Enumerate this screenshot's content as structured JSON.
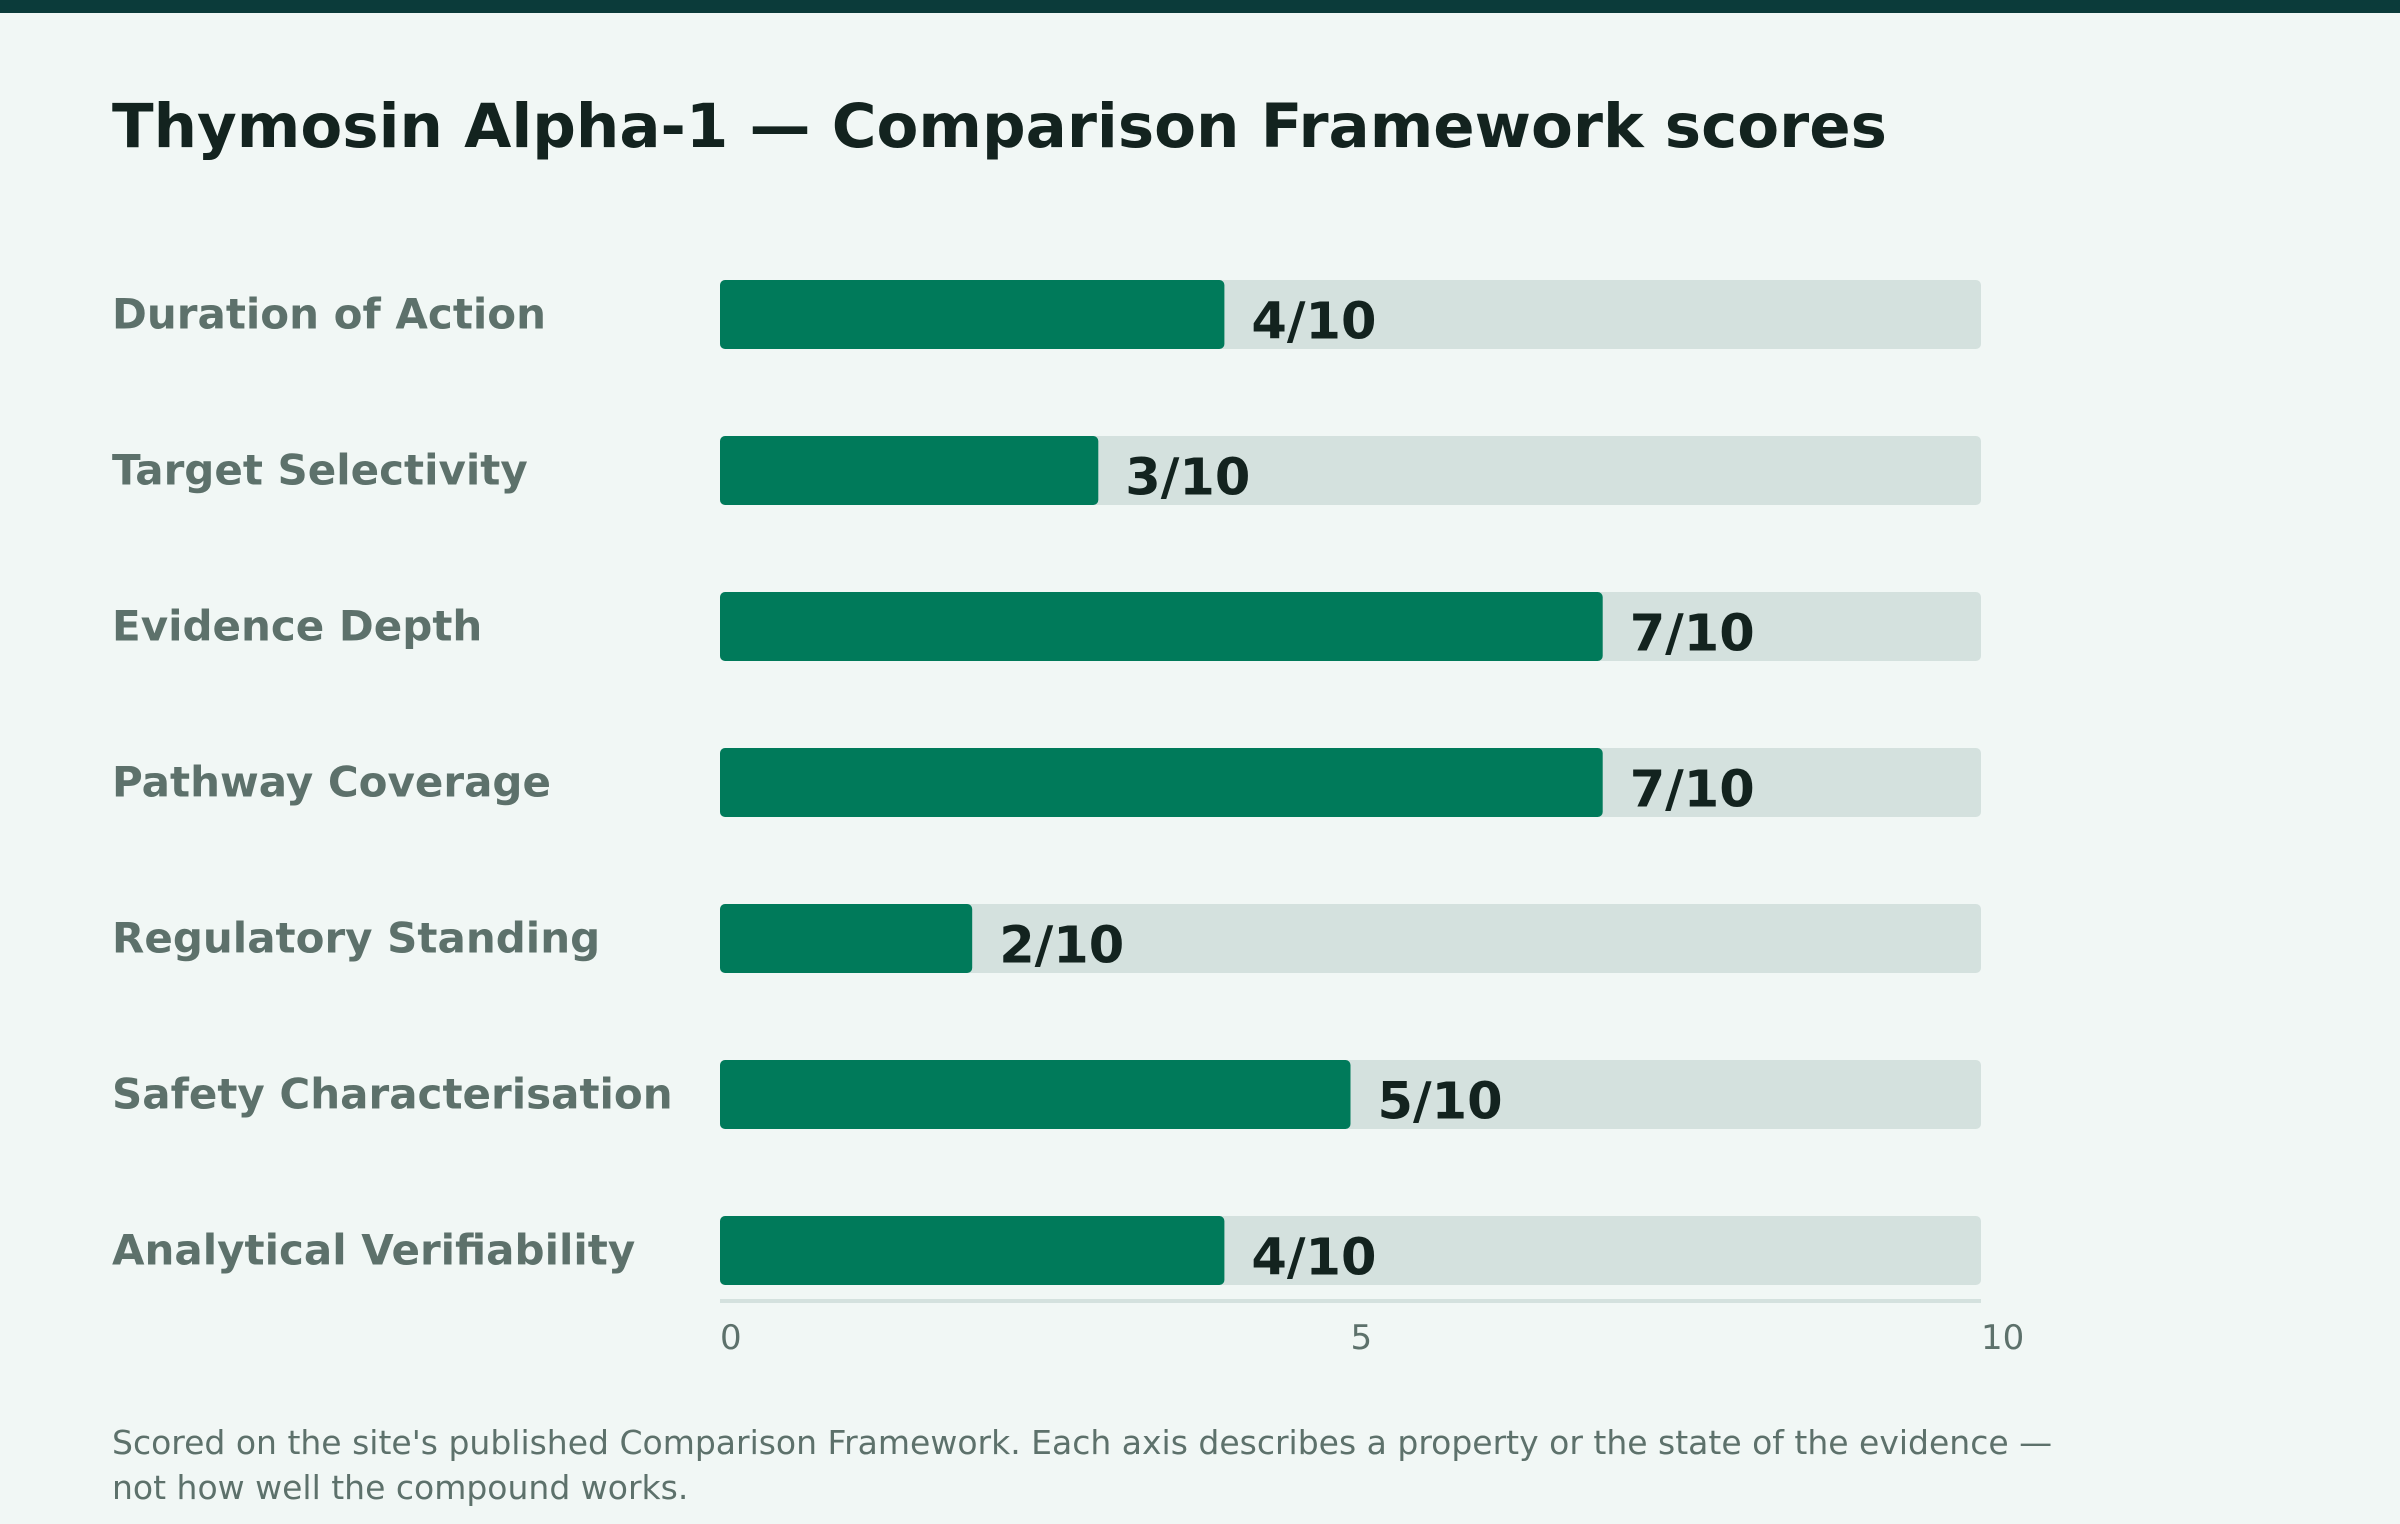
{
  "page": {
    "title": "Thymosin Alpha-1 — Comparison Framework scores",
    "footnote": "Scored on the site's published Comparison Framework. Each axis describes a property or the state of the evidence — not how well the compound works."
  },
  "colors": {
    "top_stripe": "#0b3b3a",
    "background": "#f1f7f5",
    "bar_fill": "#007a5a",
    "bar_track": "#d4e1de",
    "category_label": "#5d716b",
    "value_label": "#13231f",
    "tick_label": "#5d716b",
    "axis_line": "#d4e1de"
  },
  "chart_data": {
    "type": "bar",
    "orientation": "horizontal",
    "title": "Thymosin Alpha-1 — Comparison Framework scores",
    "xlabel": "",
    "ylabel": "",
    "xlim": [
      0,
      10
    ],
    "xticks": [
      "0",
      "5",
      "10"
    ],
    "grid": false,
    "legend": "none",
    "categories": [
      "Duration of Action",
      "Target Selectivity",
      "Evidence Depth",
      "Pathway Coverage",
      "Regulatory Standing",
      "Safety Characterisation",
      "Analytical Verifiability"
    ],
    "values": [
      4,
      3,
      7,
      7,
      2,
      5,
      4
    ],
    "value_labels": [
      "4/10",
      "3/10",
      "7/10",
      "7/10",
      "2/10",
      "5/10",
      "4/10"
    ]
  }
}
